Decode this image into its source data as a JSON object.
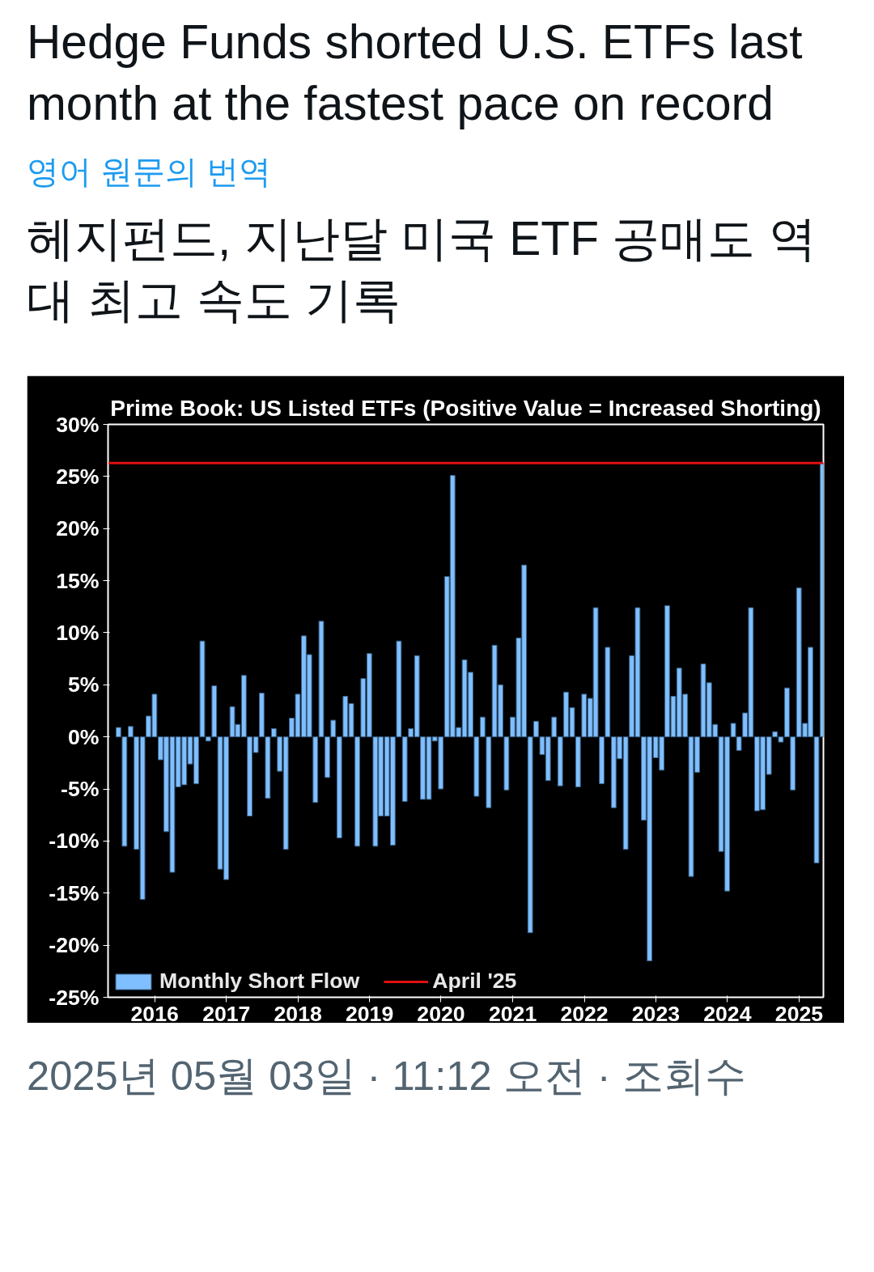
{
  "chart_data": {
    "type": "bar",
    "title": "Prime Book: US Listed ETFs (Positive Value = Increased Shorting)",
    "annotations": [
      "Hedge Funds shorted U.S. ETFs last month at the fastest pace on record",
      "영어 원문의 번역",
      "헤지펀드, 지난달 미국 ETF 공매도 역대 최고 속도 기록",
      "2025년 05월 03일 · 11:12 오전 · 조회수"
    ],
    "x": [
      "2015-06-30",
      "2015-07-31",
      "2015-08-31",
      "2015-09-30",
      "2015-10-31",
      "2015-11-30",
      "2015-12-31",
      "2016-01-31",
      "2016-02-29",
      "2016-03-31",
      "2016-04-30",
      "2016-05-31",
      "2016-06-30",
      "2016-07-31",
      "2016-08-31",
      "2016-09-30",
      "2016-10-31",
      "2016-11-30",
      "2016-12-31",
      "2017-01-31",
      "2017-02-28",
      "2017-03-31",
      "2017-04-30",
      "2017-05-31",
      "2017-06-30",
      "2017-07-31",
      "2017-08-31",
      "2017-09-30",
      "2017-10-31",
      "2017-11-30",
      "2017-12-31",
      "2018-01-31",
      "2018-02-28",
      "2018-03-31",
      "2018-04-30",
      "2018-05-31",
      "2018-06-30",
      "2018-07-31",
      "2018-08-31",
      "2018-09-30",
      "2018-10-31",
      "2018-11-30",
      "2018-12-31",
      "2019-01-31",
      "2019-02-28",
      "2019-03-31",
      "2019-04-30",
      "2019-05-31",
      "2019-06-30",
      "2019-07-31",
      "2019-08-31",
      "2019-09-30",
      "2019-10-31",
      "2019-11-30",
      "2019-12-31",
      "2020-01-31",
      "2020-02-29",
      "2020-03-31",
      "2020-04-30",
      "2020-05-31",
      "2020-06-30",
      "2020-07-31",
      "2020-08-31",
      "2020-09-30",
      "2020-10-31",
      "2020-11-30",
      "2020-12-31",
      "2021-01-31",
      "2021-02-28",
      "2021-03-31",
      "2021-04-30",
      "2021-05-31",
      "2021-06-30",
      "2021-07-31",
      "2021-08-31",
      "2021-09-30",
      "2021-10-31",
      "2021-11-30",
      "2021-12-31",
      "2022-01-31",
      "2022-02-28",
      "2022-03-31",
      "2022-04-30",
      "2022-05-31",
      "2022-06-30",
      "2022-07-31",
      "2022-08-31",
      "2022-09-30",
      "2022-10-31",
      "2022-11-30",
      "2022-12-31",
      "2023-01-31",
      "2023-02-28",
      "2023-03-31",
      "2023-04-30",
      "2023-05-31",
      "2023-06-30",
      "2023-07-31",
      "2023-08-31",
      "2023-09-30",
      "2023-10-31",
      "2023-11-30",
      "2023-12-31",
      "2024-01-31",
      "2024-02-29",
      "2024-03-31",
      "2024-04-30",
      "2024-05-31",
      "2024-06-30",
      "2024-07-31",
      "2024-08-31",
      "2024-09-30",
      "2024-10-31",
      "2024-11-30",
      "2024-12-31",
      "2025-01-31",
      "2025-02-28",
      "2025-03-31",
      "2025-04-30"
    ],
    "series": [
      {
        "name": "Monthly Short Flow",
        "color": "#7fbfff",
        "values": [
          0.9,
          -10.5,
          1.0,
          -10.8,
          -15.6,
          2.0,
          4.1,
          -2.2,
          -9.1,
          -13.0,
          -4.8,
          -4.6,
          -2.6,
          -4.5,
          9.2,
          -0.4,
          4.9,
          -12.7,
          -13.7,
          2.9,
          1.2,
          5.9,
          -7.6,
          -1.5,
          4.2,
          -5.9,
          0.8,
          -3.3,
          -10.8,
          1.8,
          4.1,
          9.7,
          7.9,
          -6.3,
          11.1,
          -3.9,
          1.6,
          -9.7,
          3.9,
          3.2,
          -10.5,
          5.6,
          8.0,
          -10.5,
          -7.6,
          -7.6,
          -10.4,
          9.2,
          -6.2,
          0.8,
          7.8,
          -6.0,
          -6.0,
          -0.4,
          -5.0,
          15.4,
          25.1,
          0.9,
          7.4,
          6.2,
          -5.7,
          1.9,
          -6.8,
          8.8,
          5.0,
          -5.1,
          1.9,
          9.5,
          16.5,
          -18.8,
          1.5,
          -1.7,
          -4.2,
          1.9,
          -4.7,
          4.3,
          2.8,
          -4.8,
          4.1,
          3.7,
          12.4,
          -4.5,
          8.6,
          -6.8,
          -2.1,
          -10.8,
          7.8,
          12.4,
          -8.0,
          -21.5,
          -2.0,
          -3.2,
          12.6,
          3.9,
          6.6,
          4.1,
          -13.4,
          -3.4,
          7.0,
          5.2,
          1.2,
          -11.0,
          -14.8,
          1.3,
          -1.3,
          2.3,
          12.4,
          -7.1,
          -7.0,
          -3.6,
          0.5,
          -0.5,
          4.7,
          -5.1,
          14.3,
          1.3,
          8.6,
          -12.1,
          26.3
        ]
      }
    ],
    "ref_lines": [
      {
        "axis": "y",
        "value": 26.3,
        "label": "April '25",
        "color": "#e01010"
      }
    ],
    "xlim": [
      "2015-05-08",
      "2025-05-05"
    ],
    "xticks": [
      "2016",
      "2017",
      "2018",
      "2019",
      "2020",
      "2021",
      "2022",
      "2023",
      "2024",
      "2025"
    ],
    "ylim": [
      -25,
      30
    ],
    "yticks": [
      {
        "value": -25,
        "label": "-25%"
      },
      {
        "value": -20,
        "label": "-20%"
      },
      {
        "value": -15,
        "label": "-15%"
      },
      {
        "value": -10,
        "label": "-10%"
      },
      {
        "value": -5,
        "label": "-5%"
      },
      {
        "value": 0,
        "label": "0%"
      },
      {
        "value": 5,
        "label": "5%"
      },
      {
        "value": 10,
        "label": "10%"
      },
      {
        "value": 15,
        "label": "15%"
      },
      {
        "value": 20,
        "label": "20%"
      },
      {
        "value": 25,
        "label": "25%"
      },
      {
        "value": 30,
        "label": "30%"
      }
    ],
    "grid": false,
    "legend": "bottom"
  }
}
